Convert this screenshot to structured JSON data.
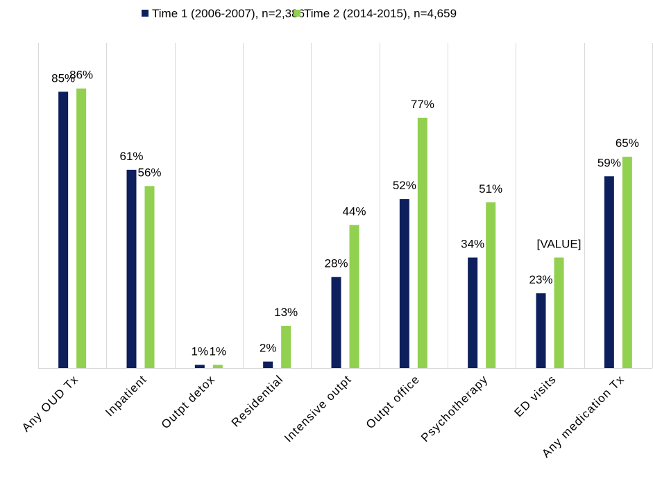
{
  "chart_data": {
    "type": "bar",
    "title": "",
    "xlabel": "",
    "ylabel": "",
    "ylim": [
      0,
      100
    ],
    "legend_position": "top-center",
    "grid": "vertical category separators",
    "categories": [
      "Any OUD Tx",
      "Inpatient",
      "Outpt detox",
      "Residential",
      "Intensive outpt",
      "Outpt office",
      "Psychotherapy",
      "ED visits",
      "Any medication Tx"
    ],
    "series": [
      {
        "name": "Time 1 (2006-2007), n=2,386",
        "color": "#0d1f5c",
        "values": [
          85,
          61,
          1,
          2,
          28,
          52,
          34,
          23,
          59
        ],
        "labels": [
          "85%",
          "61%",
          "1%",
          "2%",
          "28%",
          "52%",
          "34%",
          "23%",
          "59%"
        ]
      },
      {
        "name": "Time 2 (2014-2015), n=4,659",
        "color": "#92d050",
        "values": [
          86,
          56,
          1,
          13,
          44,
          77,
          51,
          34,
          65
        ],
        "labels": [
          "86%",
          "56%",
          "1%",
          "13%",
          "44%",
          "77%",
          "51%",
          "[VALUE]",
          "65%"
        ]
      }
    ]
  }
}
